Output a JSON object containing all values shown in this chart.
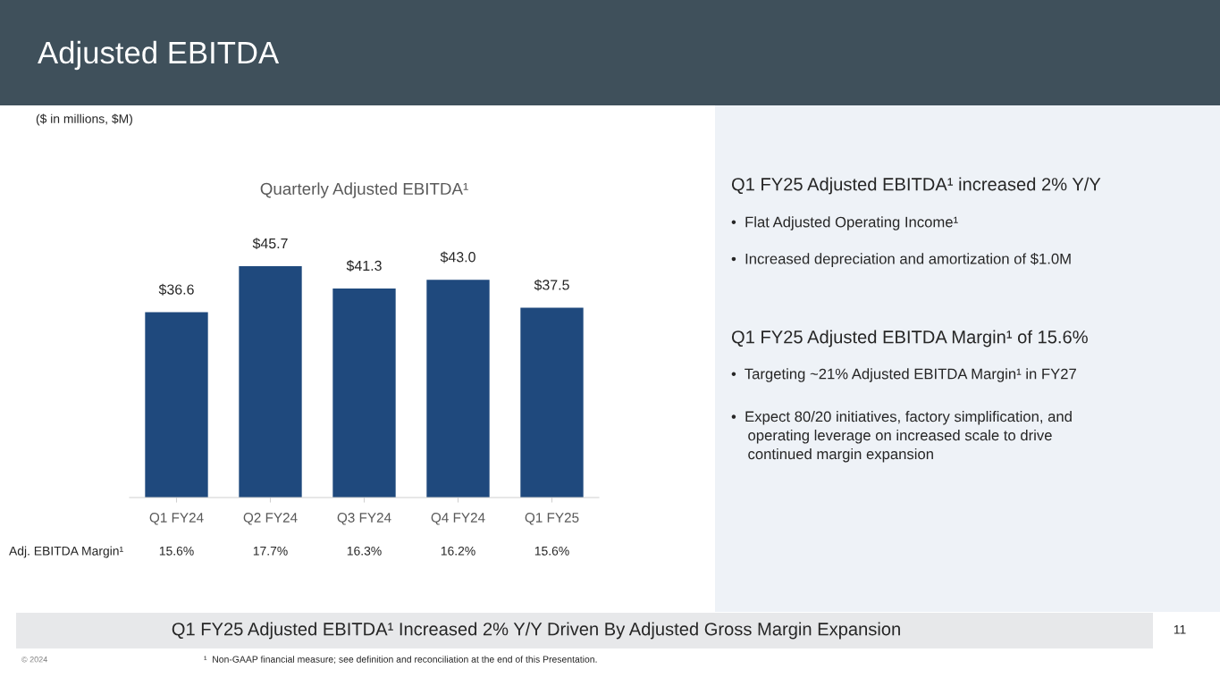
{
  "chart_data": {
    "type": "bar",
    "title": "Quarterly Adjusted EBITDA¹",
    "subtitle": "($ in millions, $M)",
    "categories": [
      "Q1 FY24",
      "Q2 FY24",
      "Q3 FY24",
      "Q4 FY24",
      "Q1 FY25"
    ],
    "values": [
      36.6,
      45.7,
      41.3,
      43.0,
      37.5
    ],
    "value_labels": [
      "$36.6",
      "$45.7",
      "$41.3",
      "$43.0",
      "$37.5"
    ],
    "color": "#1f497d",
    "annotations": [
      "Adjusted EBITDA",
      "Adj. EBITDA Margin¹",
      "15.6%",
      "17.7%",
      "16.3%",
      "16.2%",
      "15.6%",
      "Q1 FY25 Adjusted EBITDA¹ increased 2% Y/Y",
      "•  Flat Adjusted Operating Income¹",
      "•  Increased depreciation and amortization of $1.0M",
      "Q1 FY25 Adjusted EBITDA Margin¹ of 15.6%",
      "•  Targeting ~21% Adjusted EBITDA Margin¹ in FY27",
      "•  Expect 80/20 initiatives, factory simplification, and\n    operating leverage on increased scale to drive\n    continued margin expansion",
      "Q1 FY25 Adjusted EBITDA¹ Increased 2% Y/Y Driven By Adjusted Gross Margin Expansion",
      "11",
      "© 2024",
      "¹  Non-GAAP financial measure; see definition and reconciliation at the end of this Presentation."
    ]
  }
}
